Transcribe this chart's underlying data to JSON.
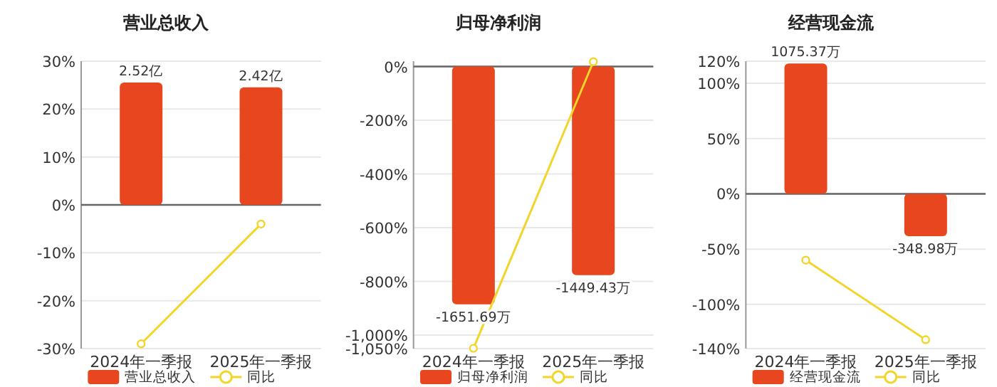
{
  "chart_data": [
    {
      "type": "bar",
      "title": "营业总收入",
      "categories": [
        "2024年一季报",
        "2025年一季报"
      ],
      "series": [
        {
          "name": "营业总收入",
          "axis": "y2",
          "color": "#e8461e",
          "values": [
            2.52,
            2.42
          ],
          "value_labels": [
            "2.52亿",
            "2.42亿"
          ]
        },
        {
          "name": "同比",
          "type": "line",
          "color": "#f2d52c",
          "values": [
            -29,
            -4
          ],
          "marker": "circle"
        }
      ],
      "ylim": [
        -30,
        30
      ],
      "y2lim": [
        -2.96,
        2.96
      ],
      "yticks": [
        {
          "value": -30,
          "label": "-30%"
        },
        {
          "value": -20,
          "label": "-20%"
        },
        {
          "value": -10,
          "label": "-10%"
        },
        {
          "value": 0,
          "label": "0%"
        },
        {
          "value": 10,
          "label": "10%"
        },
        {
          "value": 20,
          "label": "20%"
        },
        {
          "value": 30,
          "label": "30%"
        }
      ],
      "grid": "y",
      "legend": "bottom"
    },
    {
      "type": "bar",
      "title": "归母净利润",
      "categories": [
        "2024年一季报",
        "2025年一季报"
      ],
      "series": [
        {
          "name": "归母净利润",
          "axis": "y2",
          "color": "#e8461e",
          "values": [
            -1651.69,
            -1449.43
          ],
          "value_labels": [
            "-1651.69万",
            "-1449.43万"
          ]
        },
        {
          "name": "同比",
          "type": "line",
          "color": "#f2d52c",
          "values": [
            -1049,
            18
          ],
          "marker": "circle"
        }
      ],
      "ylim": [
        -1050,
        20
      ],
      "y2lim": [
        -1959,
        37
      ],
      "yticks": [
        {
          "value": -1050,
          "label": "-1,050%"
        },
        {
          "value": -1000,
          "label": "-1,000%"
        },
        {
          "value": -800,
          "label": "-800%"
        },
        {
          "value": -600,
          "label": "-600%"
        },
        {
          "value": -400,
          "label": "-400%"
        },
        {
          "value": -200,
          "label": "-200%"
        },
        {
          "value": 0,
          "label": "0%"
        }
      ],
      "grid": "y",
      "legend": "bottom"
    },
    {
      "type": "bar",
      "title": "经营现金流",
      "categories": [
        "2024年一季报",
        "2025年一季报"
      ],
      "series": [
        {
          "name": "经营现金流",
          "axis": "y2",
          "color": "#e8461e",
          "values": [
            1075.37,
            -348.98
          ],
          "value_labels": [
            "1075.37万",
            "-348.98万"
          ]
        },
        {
          "name": "同比",
          "type": "line",
          "color": "#f2d52c",
          "values": [
            -60,
            -132
          ],
          "marker": "circle"
        }
      ],
      "ylim": [
        -140,
        120
      ],
      "y2lim": [
        -1276,
        1094
      ],
      "yticks": [
        {
          "value": -140,
          "label": "-140%"
        },
        {
          "value": -100,
          "label": "-100%"
        },
        {
          "value": -50,
          "label": "-50%"
        },
        {
          "value": 0,
          "label": "0%"
        },
        {
          "value": 50,
          "label": "50%"
        },
        {
          "value": 100,
          "label": "100%"
        },
        {
          "value": 120,
          "label": "120%"
        }
      ],
      "grid": "y",
      "legend": "bottom"
    }
  ]
}
